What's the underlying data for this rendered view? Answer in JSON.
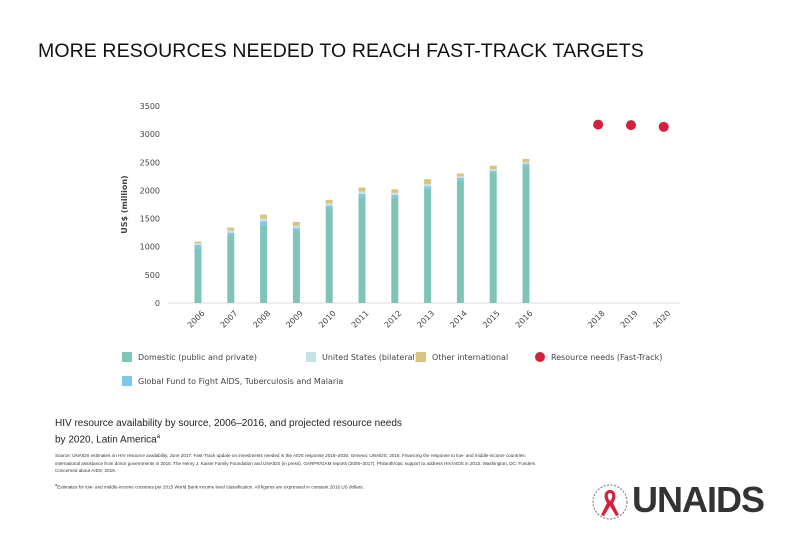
{
  "slide": {
    "title": "MORE RESOURCES NEEDED TO REACH FAST-TRACK TARGETS",
    "caption_line1": "HIV resource availability by source, 2006–2016, and projected resource needs",
    "caption_line2": "by 2020, Latin America",
    "caption_mark": "a",
    "source": "Source: UNAIDS estimates on HIV resource availability, June 2017. Fast-Track update on investments needed in the AIDS response 2016–2030. Geneva: UNAIDS; 2016. Financing the response to low- and middle-income countries: international assistance from donor governments in 2016. The Henry J. Kaiser Family Foundation and UNAIDS (in press). GARPR/GAM reports (2006–2017). Philanthropic support to address HIV/AIDS in 2015. Washington, DC: Funders Concerned about AIDS; 2016.",
    "footnote": "aEstimates for low- and middle-income countries per 2015 World Bank income level classification. All figures are expressed in constant 2016 US dollars.",
    "logo_text": "UNAIDS"
  },
  "chart_data": {
    "type": "bar",
    "ylabel": "US$ (million)",
    "ylim": [
      0,
      3500
    ],
    "yticks": [
      0,
      500,
      1000,
      1500,
      2000,
      2500,
      3000,
      3500
    ],
    "categories": [
      "2006",
      "2007",
      "2008",
      "2009",
      "2010",
      "2011",
      "2012",
      "2013",
      "2014",
      "2015",
      "2016"
    ],
    "stacked": true,
    "series": [
      {
        "name": "Domestic (public and private)",
        "color": "#7fc4b8",
        "values": [
          970,
          1190,
          1380,
          1270,
          1680,
          1890,
          1880,
          2030,
          2180,
          2320,
          2440
        ]
      },
      {
        "name": "Global Fund to Fight AIDS, Tuberculosis and Malaria",
        "color": "#7fc7e8",
        "values": [
          60,
          60,
          70,
          60,
          50,
          50,
          40,
          40,
          40,
          30,
          30
        ]
      },
      {
        "name": "United States (bilateral)",
        "color": "#c7e2e6",
        "values": [
          30,
          40,
          50,
          40,
          40,
          40,
          40,
          40,
          30,
          30,
          30
        ]
      },
      {
        "name": "Other international",
        "color": "#d8c47d",
        "values": [
          30,
          50,
          70,
          70,
          60,
          70,
          60,
          90,
          50,
          60,
          60
        ]
      }
    ],
    "projection": {
      "name": "Resource needs (Fast-Track)",
      "color": "#d4203a",
      "categories": [
        "2018",
        "2019",
        "2020"
      ],
      "values": [
        3170,
        3160,
        3130
      ]
    },
    "grid": false,
    "legend_placement": "bottom"
  }
}
